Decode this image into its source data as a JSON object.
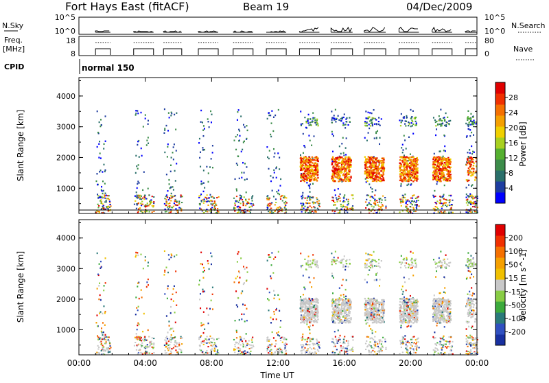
{
  "header": {
    "station": "Fort Hays East (fitACF)",
    "beam": "Beam 19",
    "date": "04/Dec/2009"
  },
  "top_panels": {
    "nsky_label": "N.Sky",
    "nsky_ticks": [
      "10^5",
      "10^0"
    ],
    "nsky_right_ticks": [
      "10^5",
      "10^0"
    ],
    "nsearch_label": "N.Search",
    "freq_label": "Freq.",
    "freq_unit": "[MHz]",
    "freq_ticks": [
      "18",
      "8"
    ],
    "nave_ticks": [
      "80",
      "0"
    ],
    "nave_label": "Nave",
    "cpid_label": "CPID",
    "cpid_value": "normal 150"
  },
  "chart_data": [
    {
      "type": "heatmap",
      "title": "",
      "xlabel": "Time UT",
      "ylabel": "Slant Range [km]",
      "x_ticks": [
        "00:00",
        "04:00",
        "08:00",
        "12:00",
        "16:00",
        "20:00",
        "00:00"
      ],
      "y_ticks": [
        "1000",
        "2000",
        "3000",
        "4000"
      ],
      "xlim": [
        0,
        24
      ],
      "ylim": [
        180,
        4600
      ],
      "colorbar": {
        "label": "Power [dB]",
        "ticks": [
          "4",
          "8",
          "12",
          "16",
          "20",
          "24",
          "28"
        ],
        "colors": [
          "#0000ff",
          "#1e3da0",
          "#2a6f6a",
          "#3c8c4a",
          "#55b030",
          "#a8d020",
          "#f0d000",
          "#f5a000",
          "#f57000",
          "#f03000",
          "#e00000"
        ]
      },
      "grid": false,
      "legend": "right"
    },
    {
      "type": "heatmap",
      "title": "",
      "xlabel": "Time UT",
      "ylabel": "Slant Range [km]",
      "x_ticks": [
        "00:00",
        "04:00",
        "08:00",
        "12:00",
        "16:00",
        "20:00",
        "00:00"
      ],
      "y_ticks": [
        "1000",
        "2000",
        "3000",
        "4000"
      ],
      "xlim": [
        0,
        24
      ],
      "ylim": [
        180,
        4600
      ],
      "colorbar": {
        "label": "Velocity [m s^-1]",
        "ticks": [
          "200",
          "100",
          "50",
          "15",
          "-15",
          "-50",
          "-100",
          "-200"
        ],
        "colors": [
          "#1830a0",
          "#3050c0",
          "#2a7a7a",
          "#3caa3c",
          "#88cc44",
          "#c8c8c8",
          "#f0c000",
          "#f5a000",
          "#f57000",
          "#f03000",
          "#e00000"
        ]
      },
      "grid": false,
      "legend": "right"
    }
  ],
  "observation_windows": [
    {
      "start": 1.0,
      "end": 1.9,
      "power_band": "low"
    },
    {
      "start": 3.3,
      "end": 4.5,
      "power_band": "low"
    },
    {
      "start": 5.1,
      "end": 6.2,
      "power_band": "low"
    },
    {
      "start": 7.2,
      "end": 8.4,
      "power_band": "low"
    },
    {
      "start": 9.3,
      "end": 10.5,
      "power_band": "low"
    },
    {
      "start": 11.3,
      "end": 12.5,
      "power_band": "low"
    },
    {
      "start": 13.3,
      "end": 14.5,
      "power_band": "high"
    },
    {
      "start": 15.2,
      "end": 16.5,
      "power_band": "high"
    },
    {
      "start": 17.2,
      "end": 18.5,
      "power_band": "high"
    },
    {
      "start": 19.3,
      "end": 20.5,
      "power_band": "high"
    },
    {
      "start": 21.3,
      "end": 22.5,
      "power_band": "high"
    },
    {
      "start": 23.3,
      "end": 24.0,
      "power_band": "mid"
    }
  ]
}
